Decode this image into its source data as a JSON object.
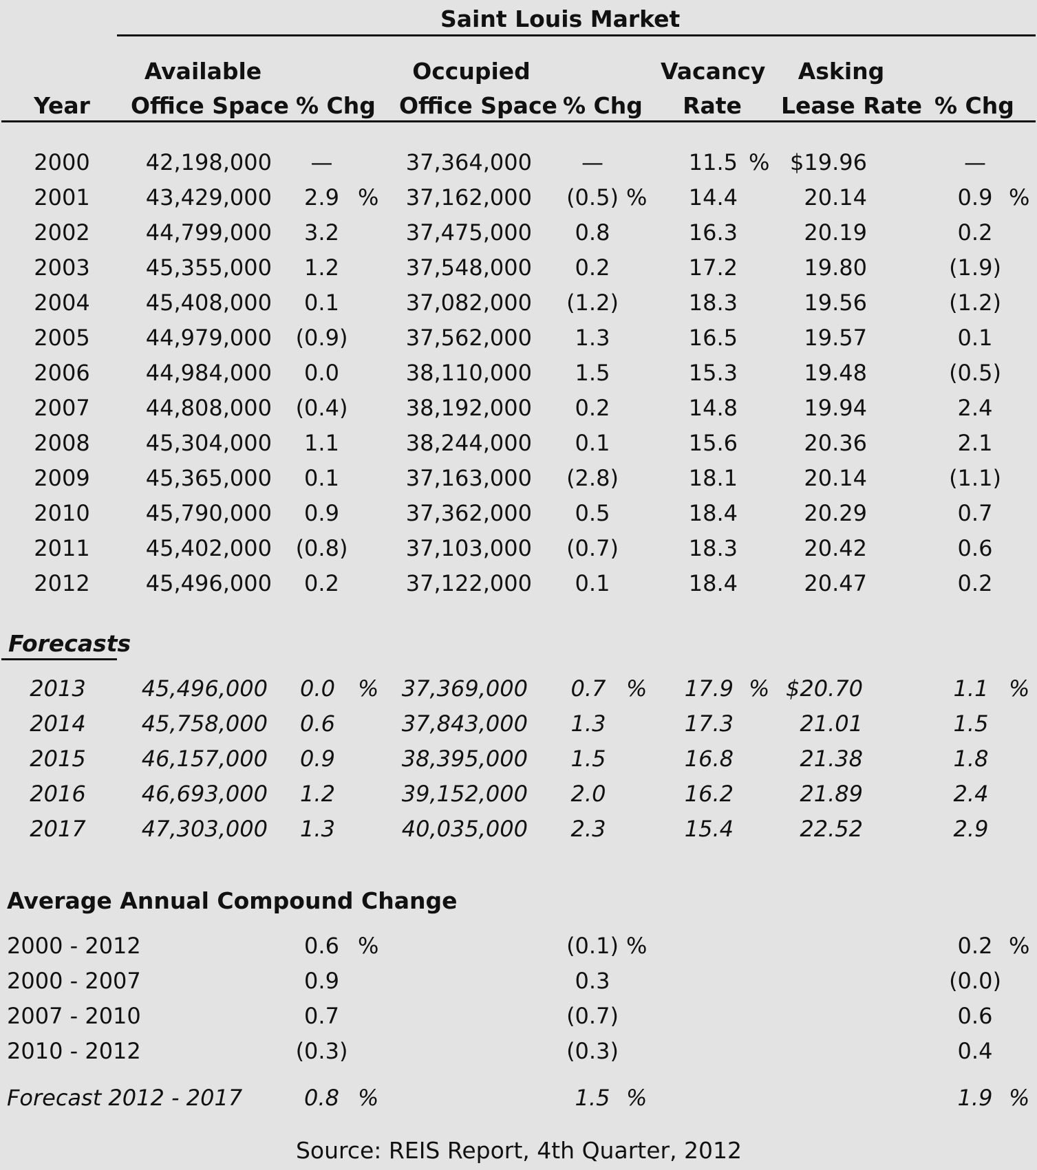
{
  "title": "Saint Louis Market",
  "headers": {
    "year": "Year",
    "available_1": "Available",
    "available_2": "Office Space",
    "chg1": "% Chg",
    "occupied_1": "Occupied",
    "occupied_2": "Office Space",
    "chg2": "% Chg",
    "vacancy_1": "Vacancy",
    "vacancy_2": "Rate",
    "asking_1": "Asking",
    "asking_2": "Lease Rate",
    "chg3": "% Chg"
  },
  "historical": [
    {
      "year": "2000",
      "avail": "42,198,000",
      "chg1": "—",
      "chg1_pct": "",
      "occ": "37,364,000",
      "chg2": "—",
      "chg2_pct": "",
      "vac": "11.5",
      "vac_pct": "%",
      "ask": "$19.96",
      "chg3": "—",
      "chg3_pct": ""
    },
    {
      "year": "2001",
      "avail": "43,429,000",
      "chg1": "2.9",
      "chg1_pct": "%",
      "occ": "37,162,000",
      "chg2": "(0.5)",
      "chg2_pct": "%",
      "vac": "14.4",
      "vac_pct": "",
      "ask": "20.14",
      "chg3": "0.9",
      "chg3_pct": "%"
    },
    {
      "year": "2002",
      "avail": "44,799,000",
      "chg1": "3.2",
      "chg1_pct": "",
      "occ": "37,475,000",
      "chg2": "0.8",
      "chg2_pct": "",
      "vac": "16.3",
      "vac_pct": "",
      "ask": "20.19",
      "chg3": "0.2",
      "chg3_pct": ""
    },
    {
      "year": "2003",
      "avail": "45,355,000",
      "chg1": "1.2",
      "chg1_pct": "",
      "occ": "37,548,000",
      "chg2": "0.2",
      "chg2_pct": "",
      "vac": "17.2",
      "vac_pct": "",
      "ask": "19.80",
      "chg3": "(1.9)",
      "chg3_pct": ""
    },
    {
      "year": "2004",
      "avail": "45,408,000",
      "chg1": "0.1",
      "chg1_pct": "",
      "occ": "37,082,000",
      "chg2": "(1.2)",
      "chg2_pct": "",
      "vac": "18.3",
      "vac_pct": "",
      "ask": "19.56",
      "chg3": "(1.2)",
      "chg3_pct": ""
    },
    {
      "year": "2005",
      "avail": "44,979,000",
      "chg1": "(0.9)",
      "chg1_pct": "",
      "occ": "37,562,000",
      "chg2": "1.3",
      "chg2_pct": "",
      "vac": "16.5",
      "vac_pct": "",
      "ask": "19.57",
      "chg3": "0.1",
      "chg3_pct": ""
    },
    {
      "year": "2006",
      "avail": "44,984,000",
      "chg1": "0.0",
      "chg1_pct": "",
      "occ": "38,110,000",
      "chg2": "1.5",
      "chg2_pct": "",
      "vac": "15.3",
      "vac_pct": "",
      "ask": "19.48",
      "chg3": "(0.5)",
      "chg3_pct": ""
    },
    {
      "year": "2007",
      "avail": "44,808,000",
      "chg1": "(0.4)",
      "chg1_pct": "",
      "occ": "38,192,000",
      "chg2": "0.2",
      "chg2_pct": "",
      "vac": "14.8",
      "vac_pct": "",
      "ask": "19.94",
      "chg3": "2.4",
      "chg3_pct": ""
    },
    {
      "year": "2008",
      "avail": "45,304,000",
      "chg1": "1.1",
      "chg1_pct": "",
      "occ": "38,244,000",
      "chg2": "0.1",
      "chg2_pct": "",
      "vac": "15.6",
      "vac_pct": "",
      "ask": "20.36",
      "chg3": "2.1",
      "chg3_pct": ""
    },
    {
      "year": "2009",
      "avail": "45,365,000",
      "chg1": "0.1",
      "chg1_pct": "",
      "occ": "37,163,000",
      "chg2": "(2.8)",
      "chg2_pct": "",
      "vac": "18.1",
      "vac_pct": "",
      "ask": "20.14",
      "chg3": "(1.1)",
      "chg3_pct": ""
    },
    {
      "year": "2010",
      "avail": "45,790,000",
      "chg1": "0.9",
      "chg1_pct": "",
      "occ": "37,362,000",
      "chg2": "0.5",
      "chg2_pct": "",
      "vac": "18.4",
      "vac_pct": "",
      "ask": "20.29",
      "chg3": "0.7",
      "chg3_pct": ""
    },
    {
      "year": "2011",
      "avail": "45,402,000",
      "chg1": "(0.8)",
      "chg1_pct": "",
      "occ": "37,103,000",
      "chg2": "(0.7)",
      "chg2_pct": "",
      "vac": "18.3",
      "vac_pct": "",
      "ask": "20.42",
      "chg3": "0.6",
      "chg3_pct": ""
    },
    {
      "year": "2012",
      "avail": "45,496,000",
      "chg1": "0.2",
      "chg1_pct": "",
      "occ": "37,122,000",
      "chg2": "0.1",
      "chg2_pct": "",
      "vac": "18.4",
      "vac_pct": "",
      "ask": "20.47",
      "chg3": "0.2",
      "chg3_pct": ""
    }
  ],
  "forecasts_label": "Forecasts",
  "forecasts": [
    {
      "year": "2013",
      "avail": "45,496,000",
      "chg1": "0.0",
      "chg1_pct": "%",
      "occ": "37,369,000",
      "chg2": "0.7",
      "chg2_pct": "%",
      "vac": "17.9",
      "vac_pct": "%",
      "ask": "$20.70",
      "chg3": "1.1",
      "chg3_pct": "%"
    },
    {
      "year": "2014",
      "avail": "45,758,000",
      "chg1": "0.6",
      "chg1_pct": "",
      "occ": "37,843,000",
      "chg2": "1.3",
      "chg2_pct": "",
      "vac": "17.3",
      "vac_pct": "",
      "ask": "21.01",
      "chg3": "1.5",
      "chg3_pct": ""
    },
    {
      "year": "2015",
      "avail": "46,157,000",
      "chg1": "0.9",
      "chg1_pct": "",
      "occ": "38,395,000",
      "chg2": "1.5",
      "chg2_pct": "",
      "vac": "16.8",
      "vac_pct": "",
      "ask": "21.38",
      "chg3": "1.8",
      "chg3_pct": ""
    },
    {
      "year": "2016",
      "avail": "46,693,000",
      "chg1": "1.2",
      "chg1_pct": "",
      "occ": "39,152,000",
      "chg2": "2.0",
      "chg2_pct": "",
      "vac": "16.2",
      "vac_pct": "",
      "ask": "21.89",
      "chg3": "2.4",
      "chg3_pct": ""
    },
    {
      "year": "2017",
      "avail": "47,303,000",
      "chg1": "1.3",
      "chg1_pct": "",
      "occ": "40,035,000",
      "chg2": "2.3",
      "chg2_pct": "",
      "vac": "15.4",
      "vac_pct": "",
      "ask": "22.52",
      "chg3": "2.9",
      "chg3_pct": ""
    }
  ],
  "aacc_label": "Average Annual Compound Change",
  "aacc": [
    {
      "period": "2000 - 2012",
      "chg1": "0.6",
      "chg1_pct": "%",
      "chg2": "(0.1)",
      "chg2_pct": "%",
      "chg3": "0.2",
      "chg3_pct": "%"
    },
    {
      "period": "2000 - 2007",
      "chg1": "0.9",
      "chg1_pct": "",
      "chg2": "0.3",
      "chg2_pct": "",
      "chg3": "(0.0)",
      "chg3_pct": ""
    },
    {
      "period": "2007 - 2010",
      "chg1": "0.7",
      "chg1_pct": "",
      "chg2": "(0.7)",
      "chg2_pct": "",
      "chg3": "0.6",
      "chg3_pct": ""
    },
    {
      "period": "2010 - 2012",
      "chg1": "(0.3)",
      "chg1_pct": "",
      "chg2": "(0.3)",
      "chg2_pct": "",
      "chg3": "0.4",
      "chg3_pct": ""
    }
  ],
  "forecast_aacc": {
    "period": "Forecast 2012 - 2017",
    "chg1": "0.8",
    "chg1_pct": "%",
    "chg2": "1.5",
    "chg2_pct": "%",
    "chg3": "1.9",
    "chg3_pct": "%"
  },
  "source": "Source: REIS Report, 4th Quarter, 2012"
}
